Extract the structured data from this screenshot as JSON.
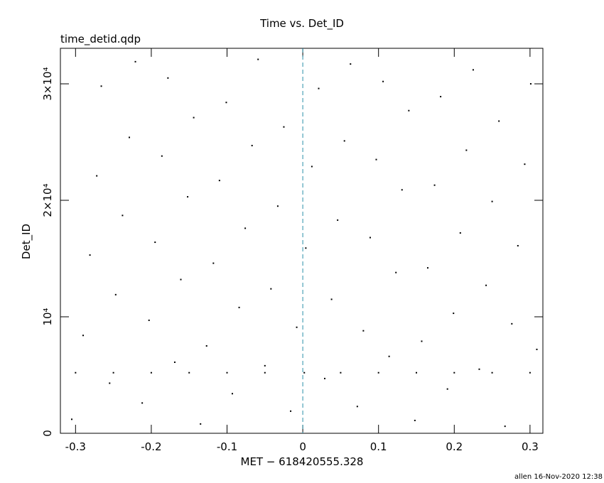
{
  "chart_data": {
    "type": "scatter",
    "title": "Time vs. Det_ID",
    "subtitle": "time_detid.qdp",
    "x_label": "MET − 618420555.328",
    "y_label": "Det_ID",
    "footer": "allen 16-Nov-2020 12:38",
    "xlim": [
      -0.32,
      0.317
    ],
    "ylim": [
      0,
      33050
    ],
    "xticks": [
      -0.3,
      -0.2,
      -0.1,
      0,
      0.1,
      0.2,
      0.3
    ],
    "yticks": [
      0,
      {
        "value": 10000,
        "label": "10⁴"
      },
      {
        "value": 20000,
        "label": "2×10⁴"
      },
      {
        "value": 30000,
        "label": "3×10⁴"
      }
    ],
    "color": "#000000",
    "vline": 0,
    "vline_color": "#2a8fa8",
    "x": [
      -0.305,
      -0.29,
      -0.281,
      -0.272,
      -0.266,
      -0.255,
      -0.247,
      -0.238,
      -0.229,
      -0.221,
      -0.212,
      -0.203,
      -0.195,
      -0.186,
      -0.178,
      -0.169,
      -0.161,
      -0.152,
      -0.144,
      -0.135,
      -0.127,
      -0.118,
      -0.11,
      -0.101,
      -0.093,
      -0.084,
      -0.076,
      -0.067,
      -0.059,
      -0.05,
      -0.042,
      -0.033,
      -0.025,
      -0.016,
      -0.008,
      0.004,
      0.012,
      0.021,
      0.029,
      0.038,
      0.046,
      0.055,
      0.063,
      0.072,
      0.08,
      0.089,
      0.097,
      0.106,
      0.114,
      0.123,
      0.131,
      0.14,
      0.148,
      0.157,
      0.165,
      0.174,
      0.182,
      0.191,
      0.199,
      0.208,
      0.216,
      0.225,
      0.233,
      0.242,
      0.25,
      0.259,
      0.267,
      0.276,
      0.284,
      0.293,
      0.301,
      0.309,
      -0.3,
      -0.25,
      -0.2,
      -0.15,
      -0.1,
      -0.05,
      0.002,
      0.05,
      0.1,
      0.15,
      0.2,
      0.25,
      0.3
    ],
    "values": [
      1200,
      8400,
      15300,
      22100,
      29800,
      4300,
      11900,
      18700,
      25400,
      31900,
      2600,
      9700,
      16400,
      23800,
      30500,
      6100,
      13200,
      20300,
      27100,
      800,
      7500,
      14600,
      21700,
      28400,
      3400,
      10800,
      17600,
      24700,
      32100,
      5800,
      12400,
      19500,
      26300,
      1900,
      9100,
      15900,
      22900,
      29600,
      4700,
      11500,
      18300,
      25100,
      31700,
      2300,
      8800,
      16800,
      23500,
      30200,
      6600,
      13800,
      20900,
      27700,
      1100,
      7900,
      14200,
      21300,
      28900,
      3800,
      10300,
      17200,
      24300,
      31200,
      5500,
      12700,
      19900,
      26800,
      600,
      9400,
      16100,
      23100,
      30000,
      7200,
      5200,
      5200,
      5200,
      5200,
      5200,
      5200,
      5200,
      5200,
      5200,
      5200,
      5200,
      5200,
      5200
    ]
  }
}
